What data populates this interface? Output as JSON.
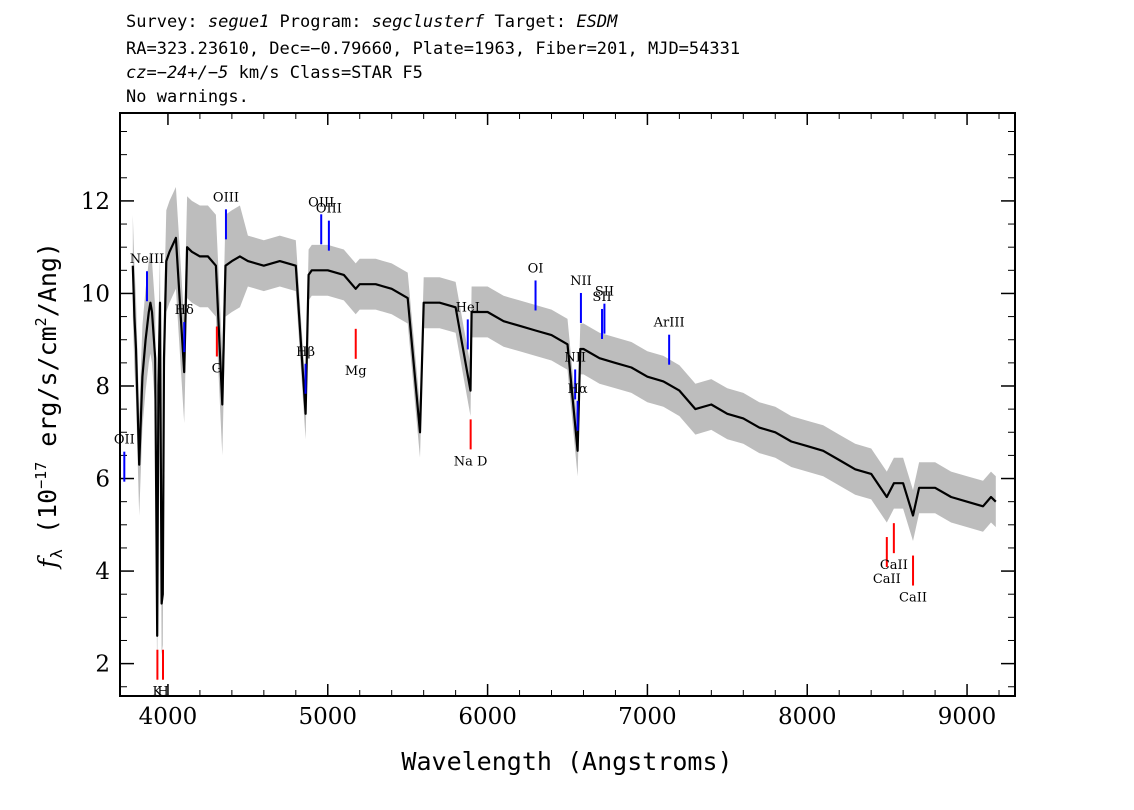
{
  "header": {
    "line1": {
      "survey_label": "Survey: ",
      "survey": "segue1",
      "program_label": " Program: ",
      "program": "segclusterf",
      "target_label": " Target: ",
      "target": "ESDM"
    },
    "line2": "RA=323.23610, Dec=−0.79660, Plate=1963, Fiber=201, MJD=54331",
    "line3": {
      "cz": "cz=−24+/−5",
      "rest": " km/s Class=STAR F5"
    },
    "line4": "No warnings."
  },
  "chart_data": {
    "type": "line",
    "xlabel": "Wavelength (Angstroms)",
    "ylabel": "f_λ (10^-17 erg/s/cm^2/Ang)",
    "ylabel_parts": {
      "f": "f",
      "sub": "λ",
      "open": " (10",
      "exp": "−17",
      "mid": " erg/s/cm",
      "exp2": "2",
      "close": "/Ang)"
    },
    "xlim": [
      3700,
      9300
    ],
    "ylim": [
      1.3,
      13.9
    ],
    "xticks": [
      4000,
      5000,
      6000,
      7000,
      8000,
      9000
    ],
    "yticks": [
      2,
      4,
      6,
      8,
      10,
      12
    ],
    "series": [
      {
        "color": "#000000",
        "x": [
          3780,
          3790,
          3800,
          3820,
          3840,
          3860,
          3880,
          3890,
          3900,
          3920,
          3933,
          3940,
          3950,
          3960,
          3968,
          3975,
          3990,
          4010,
          4050,
          4102,
          4120,
          4150,
          4200,
          4250,
          4300,
          4340,
          4360,
          4400,
          4450,
          4500,
          4600,
          4700,
          4800,
          4861,
          4880,
          4900,
          5000,
          5100,
          5175,
          5200,
          5300,
          5400,
          5500,
          5577,
          5600,
          5700,
          5800,
          5893,
          5900,
          6000,
          6100,
          6200,
          6300,
          6400,
          6500,
          6563,
          6580,
          6600,
          6700,
          6800,
          6900,
          7000,
          7100,
          7200,
          7300,
          7400,
          7500,
          7600,
          7700,
          7800,
          7900,
          8000,
          8100,
          8200,
          8300,
          8400,
          8498,
          8542,
          8600,
          8662,
          8700,
          8800,
          8900,
          9000,
          9100,
          9150,
          9180
        ],
        "values": [
          10.6,
          9.5,
          8.8,
          6.3,
          8.2,
          9.0,
          9.6,
          9.8,
          9.6,
          8.6,
          2.6,
          8.0,
          9.8,
          3.3,
          3.5,
          8.6,
          10.7,
          10.9,
          11.2,
          8.3,
          11.0,
          10.9,
          10.8,
          10.8,
          10.6,
          7.6,
          10.6,
          10.7,
          10.8,
          10.7,
          10.6,
          10.7,
          10.6,
          7.4,
          10.4,
          10.5,
          10.5,
          10.4,
          10.1,
          10.2,
          10.2,
          10.1,
          9.9,
          7.0,
          9.8,
          9.8,
          9.7,
          7.9,
          9.6,
          9.6,
          9.4,
          9.3,
          9.2,
          9.1,
          8.9,
          6.6,
          8.8,
          8.8,
          8.6,
          8.5,
          8.4,
          8.2,
          8.1,
          7.9,
          7.5,
          7.6,
          7.4,
          7.3,
          7.1,
          7.0,
          6.8,
          6.7,
          6.6,
          6.4,
          6.2,
          6.1,
          5.6,
          5.9,
          5.9,
          5.2,
          5.8,
          5.8,
          5.6,
          5.5,
          5.4,
          5.6,
          5.5
        ]
      }
    ],
    "emission_lines": [
      {
        "label": "OII",
        "wavelength": 3727
      },
      {
        "label": "NeIII",
        "wavelength": 3869
      },
      {
        "label": "Hδ",
        "wavelength": 4102
      },
      {
        "label": "OIII",
        "wavelength": 4363
      },
      {
        "label": "Hβ",
        "wavelength": 4861
      },
      {
        "label": "OIII",
        "wavelength": 4959
      },
      {
        "label": "OIII",
        "wavelength": 5007
      },
      {
        "label": "HeI",
        "wavelength": 5876
      },
      {
        "label": "OI",
        "wavelength": 6300
      },
      {
        "label": "NII",
        "wavelength": 6548
      },
      {
        "label": "Hα",
        "wavelength": 6563
      },
      {
        "label": "NII",
        "wavelength": 6584
      },
      {
        "label": "SII",
        "wavelength": 6716
      },
      {
        "label": "SII",
        "wavelength": 6731
      },
      {
        "label": "ArIII",
        "wavelength": 7136
      }
    ],
    "absorption_lines": [
      {
        "label": "K",
        "wavelength": 3934
      },
      {
        "label": "H",
        "wavelength": 3969
      },
      {
        "label": "G",
        "wavelength": 4306
      },
      {
        "label": "Mg",
        "wavelength": 5175
      },
      {
        "label": "Na D",
        "wavelength": 5894
      },
      {
        "label": "CaII",
        "wavelength": 8498
      },
      {
        "label": "CaII",
        "wavelength": 8542
      },
      {
        "label": "CaII",
        "wavelength": 8662
      }
    ],
    "colors": {
      "flux": "#000000",
      "error": "#bdbdbd",
      "emission": "#0000ff",
      "absorption": "#ff0000"
    }
  }
}
